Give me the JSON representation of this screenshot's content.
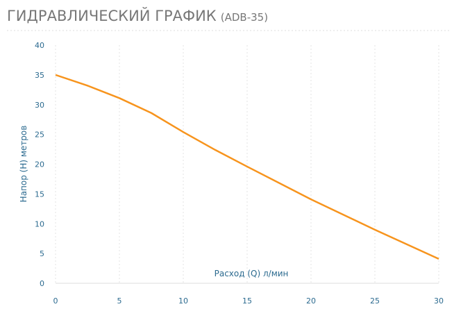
{
  "chart_data": {
    "type": "line",
    "title": "ГИДРАВЛИЧЕСКИЙ ГРАФИК",
    "subtitle": "(ADB-35)",
    "x_label": "Расход (Q) л/мин",
    "y_label": "Напор (H) метров",
    "x": [
      0,
      2.5,
      5,
      7.5,
      10,
      12.5,
      15,
      20,
      25,
      30
    ],
    "series": [
      {
        "name": "ADB-35",
        "color": "#f7941d",
        "values": [
          35,
          33.2,
          31.1,
          28.6,
          25.4,
          22.4,
          19.6,
          14.1,
          9,
          4.1
        ]
      }
    ],
    "xlim": [
      0,
      30
    ],
    "xticks": [
      0,
      5,
      10,
      15,
      20,
      25,
      30
    ],
    "ylim": [
      0,
      40
    ],
    "yticks": [
      0,
      5,
      10,
      15,
      20,
      25,
      30,
      35,
      40
    ],
    "grid": true
  }
}
